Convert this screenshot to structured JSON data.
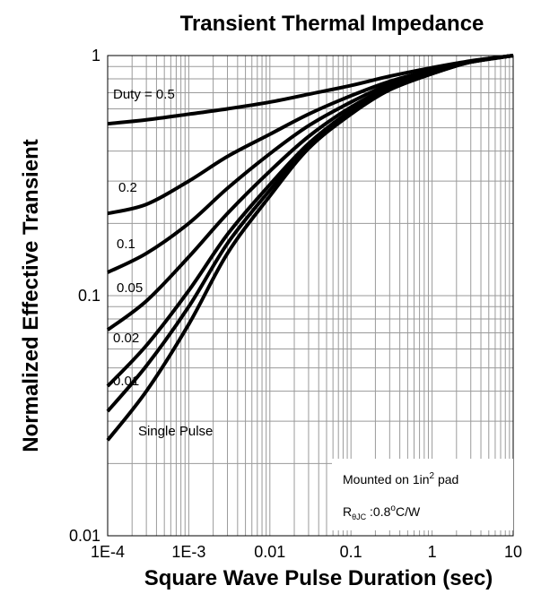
{
  "chart_data": {
    "type": "line",
    "title": "Transient Thermal Impedance",
    "xlabel": "Square Wave Pulse Duration (sec)",
    "ylabel": "Normalized Effective Transient",
    "x_scale": "log",
    "y_scale": "log",
    "xlim": [
      0.0001,
      10
    ],
    "ylim": [
      0.01,
      1
    ],
    "x_ticks": [
      "1E-4",
      "1E-3",
      "0.01",
      "0.1",
      "1",
      "10"
    ],
    "y_ticks": [
      "0.01",
      "0.1",
      "1"
    ],
    "grid": true,
    "series": [
      {
        "name": "Duty = 0.5",
        "x": [
          0.0001,
          0.0003,
          0.001,
          0.003,
          0.01,
          0.03,
          0.1,
          0.3,
          1,
          3,
          10
        ],
        "y": [
          0.52,
          0.54,
          0.57,
          0.6,
          0.64,
          0.69,
          0.75,
          0.82,
          0.89,
          0.95,
          1.0
        ]
      },
      {
        "name": "0.2",
        "x": [
          0.0001,
          0.0003,
          0.001,
          0.003,
          0.01,
          0.03,
          0.1,
          0.3,
          1,
          3,
          10
        ],
        "y": [
          0.22,
          0.24,
          0.3,
          0.38,
          0.47,
          0.57,
          0.68,
          0.78,
          0.87,
          0.94,
          1.0
        ]
      },
      {
        "name": "0.1",
        "x": [
          0.0001,
          0.0003,
          0.001,
          0.003,
          0.01,
          0.03,
          0.1,
          0.3,
          1,
          3,
          10
        ],
        "y": [
          0.125,
          0.15,
          0.2,
          0.28,
          0.39,
          0.51,
          0.64,
          0.76,
          0.86,
          0.94,
          1.0
        ]
      },
      {
        "name": "0.05",
        "x": [
          0.0001,
          0.0003,
          0.001,
          0.003,
          0.01,
          0.03,
          0.1,
          0.3,
          1,
          3,
          10
        ],
        "y": [
          0.072,
          0.095,
          0.145,
          0.22,
          0.33,
          0.46,
          0.61,
          0.74,
          0.85,
          0.94,
          1.0
        ]
      },
      {
        "name": "0.02",
        "x": [
          0.0001,
          0.0003,
          0.001,
          0.003,
          0.01,
          0.03,
          0.1,
          0.3,
          1,
          3,
          10
        ],
        "y": [
          0.042,
          0.062,
          0.105,
          0.18,
          0.29,
          0.43,
          0.59,
          0.73,
          0.85,
          0.94,
          1.0
        ]
      },
      {
        "name": "0.01",
        "x": [
          0.0001,
          0.0003,
          0.001,
          0.003,
          0.01,
          0.03,
          0.1,
          0.3,
          1,
          3,
          10
        ],
        "y": [
          0.033,
          0.051,
          0.09,
          0.165,
          0.275,
          0.42,
          0.58,
          0.72,
          0.84,
          0.94,
          1.0
        ]
      },
      {
        "name": "Single Pulse",
        "x": [
          0.0001,
          0.0003,
          0.001,
          0.003,
          0.01,
          0.03,
          0.1,
          0.3,
          1,
          3,
          10
        ],
        "y": [
          0.025,
          0.04,
          0.076,
          0.15,
          0.26,
          0.41,
          0.57,
          0.72,
          0.84,
          0.94,
          1.0
        ]
      }
    ],
    "annotations": {
      "mount_prefix": "Mounted on 1in",
      "mount_sup": "2",
      "mount_suffix": " pad",
      "r_symbol": "R",
      "r_sub": "θJC",
      "r_value_prefix": " :0.8",
      "r_value_sup": "o",
      "r_value_suffix": "C/W"
    }
  }
}
